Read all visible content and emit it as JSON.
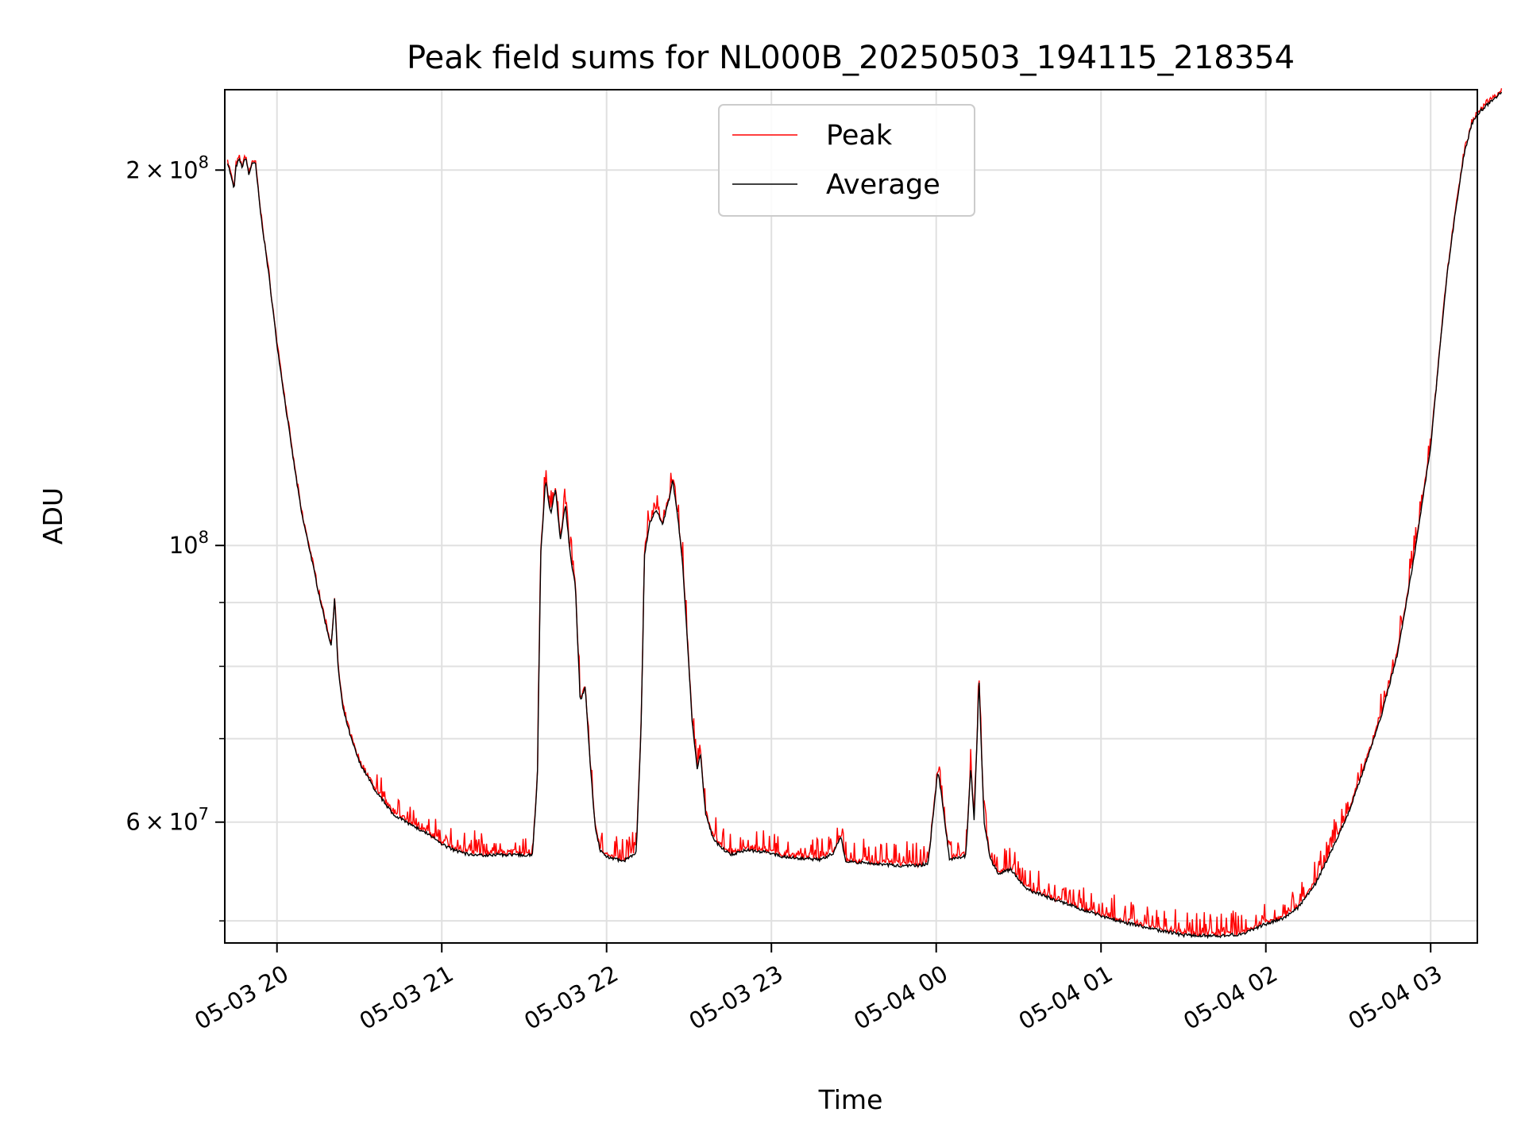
{
  "chart_data": {
    "type": "line",
    "title": "Peak field sums for NL000B_20250503_194115_218354",
    "xlabel": "Time",
    "ylabel": "ADU",
    "y_scale": "log",
    "grid": true,
    "legend_position": "top-center",
    "xlim": [
      "05-03 19:41",
      "05-04 03:17"
    ],
    "ylim": [
      48000000,
      232000000
    ],
    "x_ticks": [
      "05-03 20",
      "05-03 21",
      "05-03 22",
      "05-03 23",
      "05-04 00",
      "05-04 01",
      "05-04 02",
      "05-04 03"
    ],
    "y_ticks": [
      {
        "value": 60000000,
        "base": "6",
        "exp": "7"
      },
      {
        "value": 100000000,
        "base": "",
        "exp": "8"
      },
      {
        "value": 200000000,
        "base": "2",
        "exp": "8"
      }
    ],
    "x_unit": "hours since 05-03 20:00",
    "series": [
      {
        "name": "Peak",
        "color": "#ff0000"
      },
      {
        "name": "Average",
        "color": "#000000"
      }
    ],
    "points": [
      [
        -0.3,
        203000000
      ],
      [
        -0.28,
        198000000
      ],
      [
        -0.26,
        193000000
      ],
      [
        -0.25,
        201000000
      ],
      [
        -0.23,
        204000000
      ],
      [
        -0.21,
        201000000
      ],
      [
        -0.19,
        205000000
      ],
      [
        -0.17,
        198000000
      ],
      [
        -0.15,
        203000000
      ],
      [
        -0.13,
        202000000
      ],
      [
        -0.1,
        185000000
      ],
      [
        -0.05,
        165000000
      ],
      [
        0.0,
        145000000
      ],
      [
        0.05,
        130000000
      ],
      [
        0.1,
        117000000
      ],
      [
        0.15,
        106000000
      ],
      [
        0.2,
        99000000
      ],
      [
        0.25,
        92000000
      ],
      [
        0.3,
        86000000
      ],
      [
        0.33,
        83000000
      ],
      [
        0.35,
        91000000
      ],
      [
        0.37,
        80000000
      ],
      [
        0.4,
        74000000
      ],
      [
        0.45,
        70000000
      ],
      [
        0.5,
        67000000
      ],
      [
        0.6,
        63500000
      ],
      [
        0.7,
        61000000
      ],
      [
        0.8,
        59800000
      ],
      [
        0.9,
        58900000
      ],
      [
        1.0,
        57600000
      ],
      [
        1.1,
        56800000
      ],
      [
        1.2,
        56400000
      ],
      [
        1.3,
        56500000
      ],
      [
        1.55,
        56500000
      ],
      [
        1.58,
        65000000
      ],
      [
        1.6,
        98000000
      ],
      [
        1.63,
        113000000
      ],
      [
        1.66,
        106000000
      ],
      [
        1.69,
        111000000
      ],
      [
        1.72,
        101000000
      ],
      [
        1.75,
        108000000
      ],
      [
        1.78,
        98000000
      ],
      [
        1.81,
        93000000
      ],
      [
        1.84,
        75000000
      ],
      [
        1.87,
        77000000
      ],
      [
        1.9,
        67000000
      ],
      [
        1.93,
        59500000
      ],
      [
        1.96,
        57000000
      ],
      [
        2.0,
        56300000
      ],
      [
        2.1,
        55800000
      ],
      [
        2.18,
        56700000
      ],
      [
        2.21,
        72000000
      ],
      [
        2.23,
        98000000
      ],
      [
        2.26,
        104000000
      ],
      [
        2.3,
        107000000
      ],
      [
        2.34,
        104000000
      ],
      [
        2.38,
        109000000
      ],
      [
        2.4,
        113000000
      ],
      [
        2.43,
        106000000
      ],
      [
        2.46,
        97000000
      ],
      [
        2.49,
        84000000
      ],
      [
        2.52,
        72000000
      ],
      [
        2.55,
        66000000
      ],
      [
        2.57,
        68000000
      ],
      [
        2.6,
        61000000
      ],
      [
        2.65,
        58000000
      ],
      [
        2.75,
        56500000
      ],
      [
        2.85,
        57000000
      ],
      [
        2.95,
        56800000
      ],
      [
        3.1,
        56200000
      ],
      [
        3.3,
        56000000
      ],
      [
        3.38,
        56700000
      ],
      [
        3.42,
        58500000
      ],
      [
        3.45,
        55800000
      ],
      [
        3.6,
        55600000
      ],
      [
        3.8,
        55300000
      ],
      [
        3.95,
        55500000
      ],
      [
        4.01,
        66000000
      ],
      [
        4.04,
        62000000
      ],
      [
        4.08,
        56000000
      ],
      [
        4.13,
        56200000
      ],
      [
        4.18,
        56400000
      ],
      [
        4.21,
        66500000
      ],
      [
        4.23,
        60000000
      ],
      [
        4.26,
        78000000
      ],
      [
        4.29,
        60000000
      ],
      [
        4.33,
        56000000
      ],
      [
        4.38,
        54500000
      ],
      [
        4.45,
        55000000
      ],
      [
        4.55,
        53000000
      ],
      [
        4.7,
        52100000
      ],
      [
        4.9,
        51000000
      ],
      [
        5.1,
        50000000
      ],
      [
        5.3,
        49300000
      ],
      [
        5.5,
        48700000
      ],
      [
        5.7,
        48600000
      ],
      [
        5.85,
        48800000
      ],
      [
        6.0,
        49700000
      ],
      [
        6.1,
        50200000
      ],
      [
        6.2,
        51300000
      ],
      [
        6.3,
        53500000
      ],
      [
        6.4,
        57000000
      ],
      [
        6.5,
        61000000
      ],
      [
        6.6,
        66500000
      ],
      [
        6.7,
        73000000
      ],
      [
        6.8,
        82000000
      ],
      [
        6.9,
        98000000
      ],
      [
        7.0,
        120000000
      ],
      [
        7.05,
        141000000
      ],
      [
        7.1,
        165000000
      ],
      [
        7.15,
        185000000
      ],
      [
        7.2,
        205000000
      ],
      [
        7.25,
        218000000
      ],
      [
        7.3,
        223000000
      ],
      [
        7.35,
        226000000
      ],
      [
        7.4,
        229000000
      ],
      [
        7.43,
        231000000
      ]
    ]
  }
}
